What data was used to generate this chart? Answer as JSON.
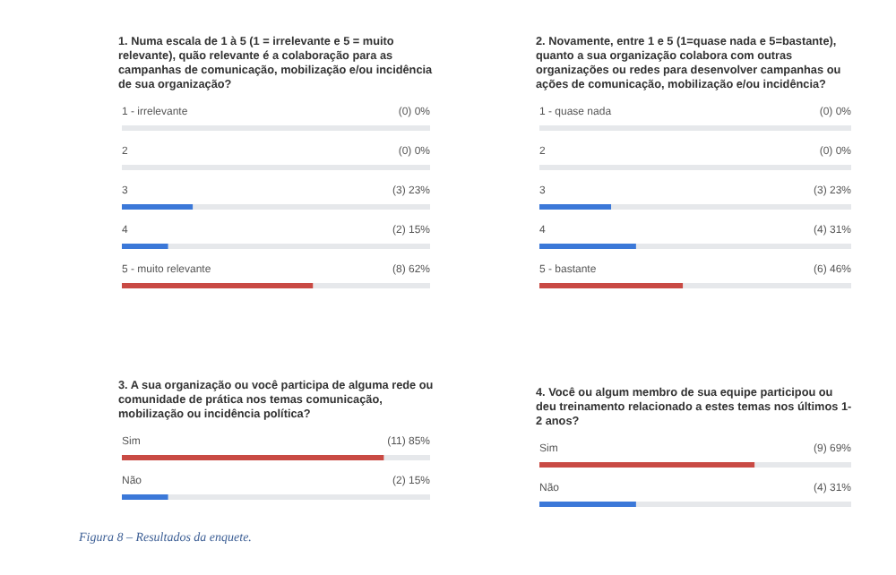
{
  "chart_data": [
    {
      "type": "bar",
      "orientation": "horizontal",
      "title": "1. Numa escala de 1 à 5 (1 = irrelevante e 5 = muito relevante), quão relevante é a colaboração para as campanhas de comunicação, mobilização e/ou incidência de sua organização?",
      "categories": [
        "1 - irrelevante",
        "2",
        "3",
        "4",
        "5 - muito relevante"
      ],
      "values": [
        0,
        0,
        23,
        15,
        62
      ],
      "value_labels": [
        "(0) 0%",
        "(0) 0%",
        "(3) 23%",
        "(2) 15%",
        "(8) 62%"
      ],
      "colors": [
        "#3b78d8",
        "#3b78d8",
        "#3b78d8",
        "#3b78d8",
        "#c94a44"
      ],
      "xlim": [
        0,
        100
      ]
    },
    {
      "type": "bar",
      "orientation": "horizontal",
      "title": "2. Novamente, entre 1 e 5 (1=quase nada e 5=bastante), quanto a sua organização colabora com outras organizações ou redes para desenvolver campanhas ou ações de comunicação, mobilização e/ou incidência?",
      "categories": [
        "1 - quase nada",
        "2",
        "3",
        "4",
        "5 - bastante"
      ],
      "values": [
        0,
        0,
        23,
        31,
        46
      ],
      "value_labels": [
        "(0) 0%",
        "(0) 0%",
        "(3) 23%",
        "(4) 31%",
        "(6) 46%"
      ],
      "colors": [
        "#3b78d8",
        "#3b78d8",
        "#3b78d8",
        "#3b78d8",
        "#c94a44"
      ],
      "xlim": [
        0,
        100
      ]
    },
    {
      "type": "bar",
      "orientation": "horizontal",
      "title": "3. A sua organização ou você participa de alguma rede ou comunidade de prática nos temas comunicação, mobilização ou incidência política?",
      "categories": [
        "Sim",
        "Não"
      ],
      "values": [
        85,
        15
      ],
      "value_labels": [
        "(11) 85%",
        "(2) 15%"
      ],
      "colors": [
        "#c94a44",
        "#3b78d8"
      ],
      "xlim": [
        0,
        100
      ],
      "annotations": [
        "Figura 8 – Resultados da enquete."
      ]
    },
    {
      "type": "bar",
      "orientation": "horizontal",
      "title": "4. Você ou algum membro de sua equipe participou ou deu treinamento relacionado a estes temas nos últimos 1-2 anos?",
      "categories": [
        "Sim",
        "Não"
      ],
      "values": [
        69,
        31
      ],
      "value_labels": [
        "(9) 69%",
        "(4) 31%"
      ],
      "colors": [
        "#c94a44",
        "#3b78d8"
      ],
      "xlim": [
        0,
        100
      ]
    }
  ]
}
